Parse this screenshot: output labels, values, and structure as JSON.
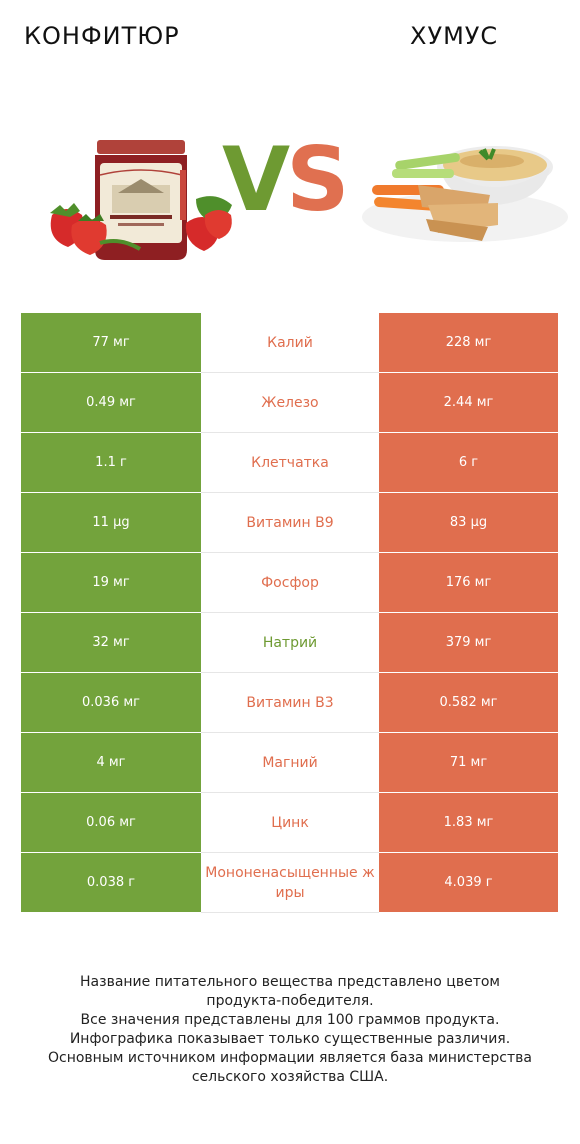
{
  "header": {
    "left_title": "КОНФИТЮР",
    "right_title": "ХУМУС",
    "vs_v": "V",
    "vs_s": "S"
  },
  "colors": {
    "left_product": "#73a33c",
    "right_product": "#e06e4e"
  },
  "images": {
    "left": "jam-jar-with-strawberries",
    "right": "hummus-bowl-with-vegetables-and-pita"
  },
  "chart_data": {
    "type": "table",
    "columns": [
      "КОНФИТЮР",
      "",
      "ХУМУС"
    ],
    "rows": [
      {
        "nutrient": "Калий",
        "left": "77 мг",
        "right": "228 мг",
        "winner": "right"
      },
      {
        "nutrient": "Железо",
        "left": "0.49 мг",
        "right": "2.44 мг",
        "winner": "right"
      },
      {
        "nutrient": "Клетчатка",
        "left": "1.1 г",
        "right": "6 г",
        "winner": "right"
      },
      {
        "nutrient": "Витамин B9",
        "left": "11 µg",
        "right": "83 µg",
        "winner": "right"
      },
      {
        "nutrient": "Фосфор",
        "left": "19 мг",
        "right": "176 мг",
        "winner": "right"
      },
      {
        "nutrient": "Натрий",
        "left": "32 мг",
        "right": "379 мг",
        "winner": "left"
      },
      {
        "nutrient": "Витамин B3",
        "left": "0.036 мг",
        "right": "0.582 мг",
        "winner": "right"
      },
      {
        "nutrient": "Магний",
        "left": "4 мг",
        "right": "71 мг",
        "winner": "right"
      },
      {
        "nutrient": "Цинк",
        "left": "0.06 мг",
        "right": "1.83 мг",
        "winner": "right"
      },
      {
        "nutrient": "Мононенасыщенные жиры",
        "left": "0.038 г",
        "right": "4.039 г",
        "winner": "right"
      }
    ]
  },
  "footer": {
    "line1": "Название питательного вещества представлено цветом",
    "line2": "продукта-победителя.",
    "line3": "Все значения представлены для 100 граммов продукта.",
    "line4": "Инфографика показывает только существенные различия.",
    "line5": "Основным источником информации является база министерства",
    "line6": "сельского хозяйства США."
  }
}
